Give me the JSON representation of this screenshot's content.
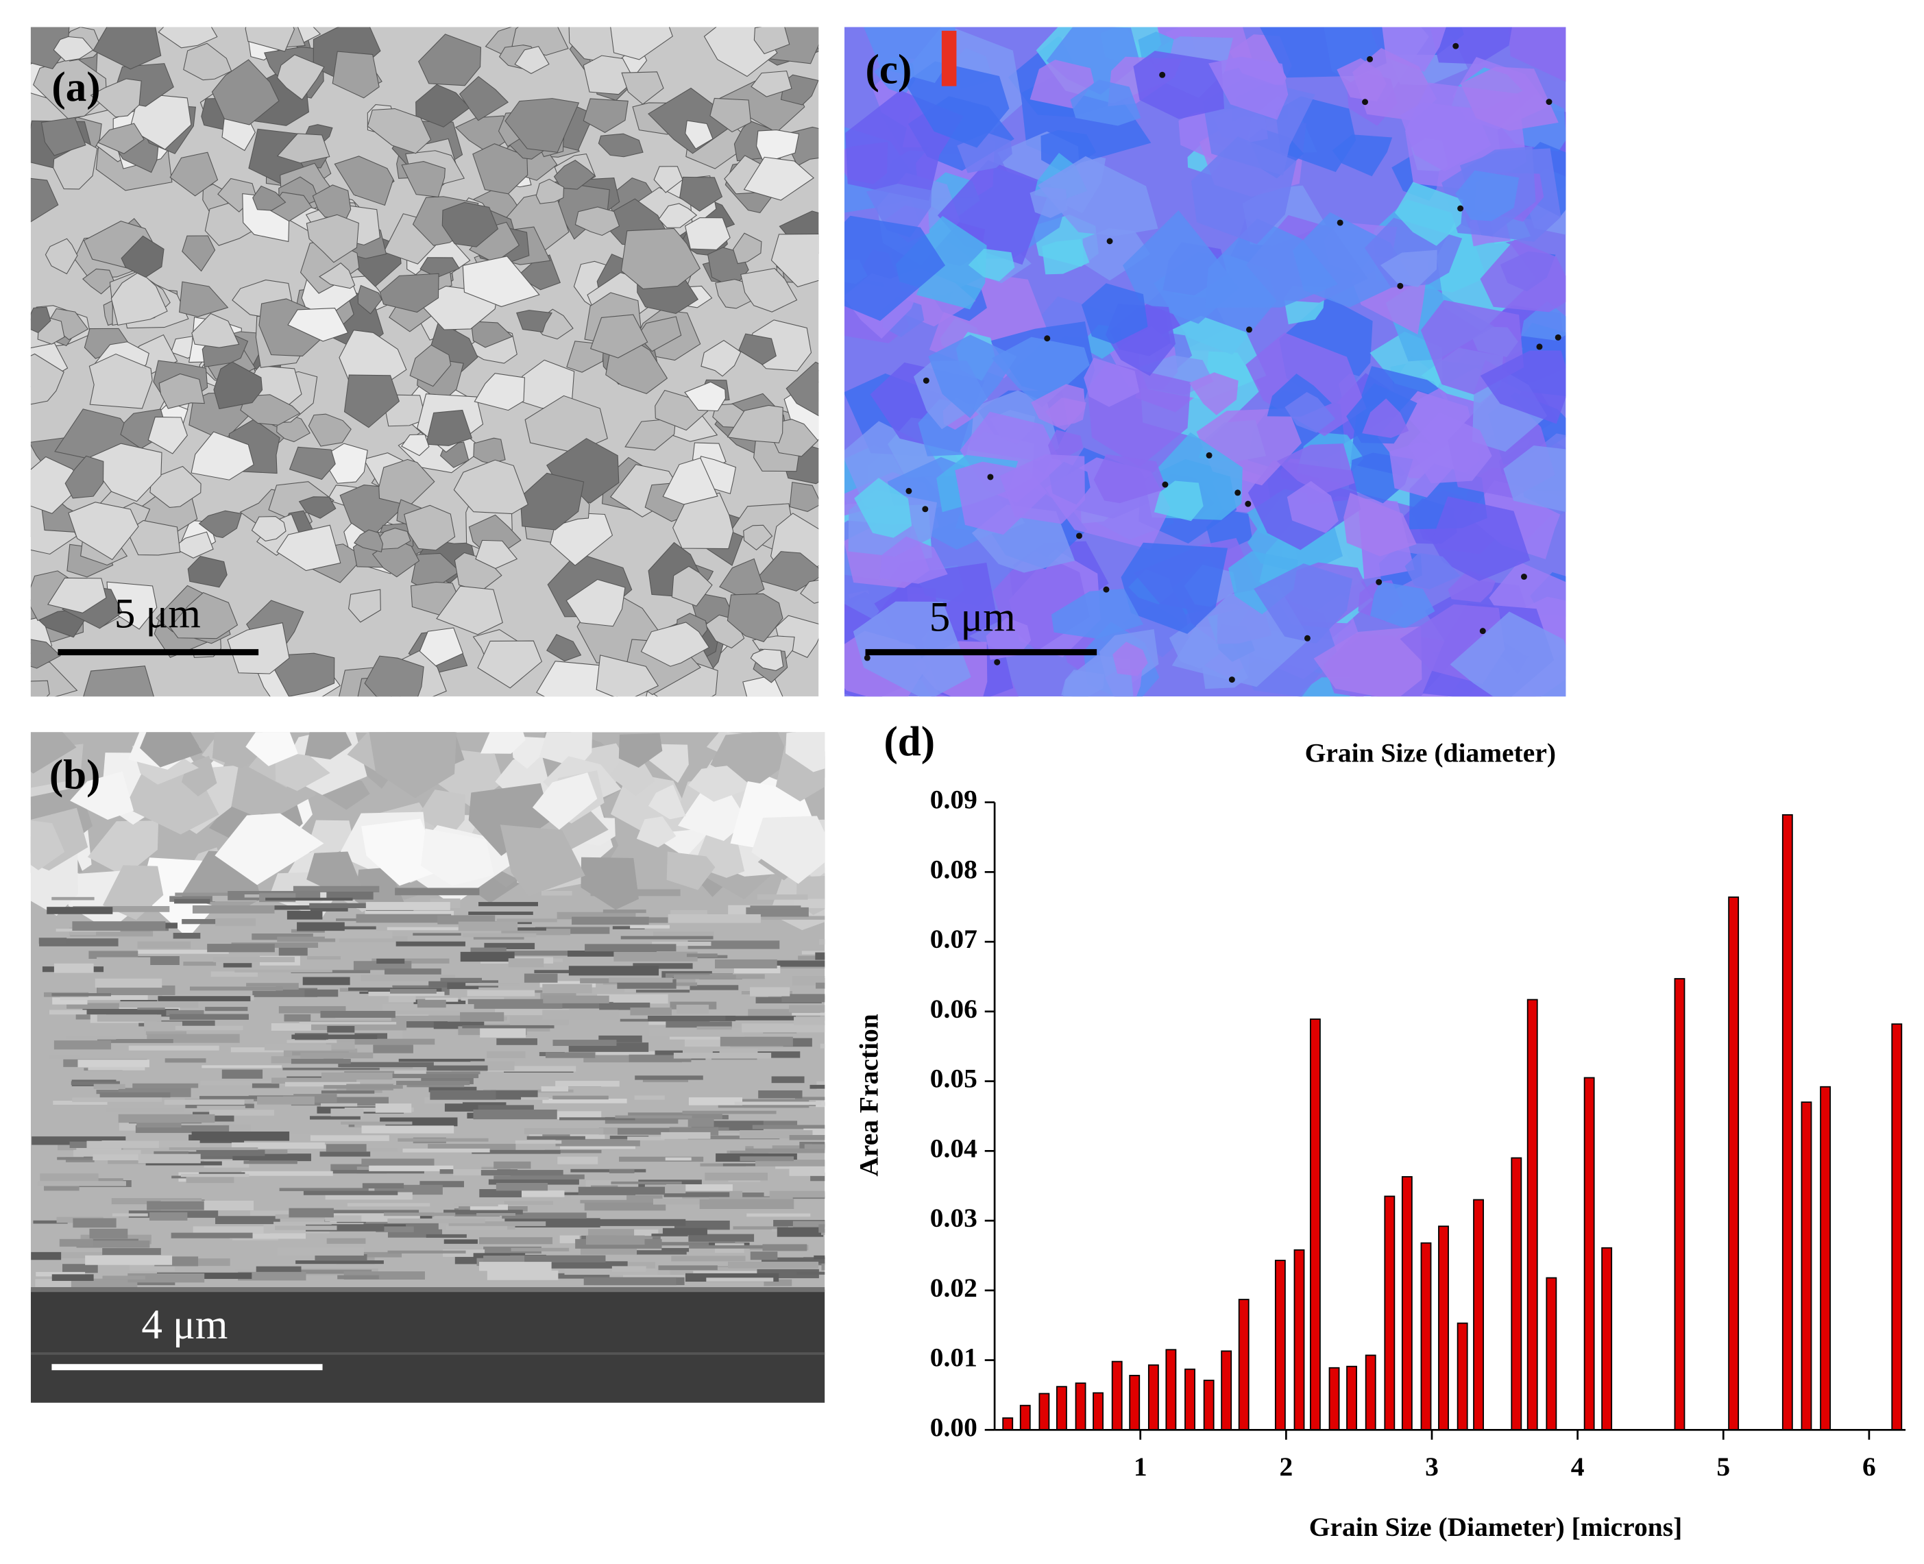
{
  "panels": [
    {
      "label": "(a)",
      "scale_bar": "5 μm"
    },
    {
      "label": "(b)",
      "scale_bar": "4 μm"
    },
    {
      "label": "(c)",
      "scale_bar": "5 μm"
    }
  ],
  "chart_data": {
    "type": "bar",
    "label": "(d)",
    "title": "Grain Size (diameter)",
    "x_label": "Grain Size (Diameter) [microns]",
    "y_label": "Area Fraction",
    "x": [
      0.09,
      0.21,
      0.34,
      0.46,
      0.59,
      0.71,
      0.84,
      0.96,
      1.09,
      1.21,
      1.34,
      1.47,
      1.59,
      1.71,
      1.96,
      2.09,
      2.2,
      2.33,
      2.45,
      2.58,
      2.71,
      2.83,
      2.96,
      3.08,
      3.21,
      3.32,
      3.58,
      3.69,
      3.82,
      4.08,
      4.2,
      4.7,
      5.07,
      5.44,
      5.57,
      5.7,
      6.19
    ],
    "values": [
      0.0017,
      0.0035,
      0.0052,
      0.0062,
      0.0067,
      0.0053,
      0.0098,
      0.0078,
      0.0093,
      0.0115,
      0.0087,
      0.0071,
      0.0113,
      0.0187,
      0.0243,
      0.0258,
      0.0589,
      0.0089,
      0.0091,
      0.0107,
      0.0335,
      0.0363,
      0.0268,
      0.0292,
      0.0153,
      0.033,
      0.039,
      0.0617,
      0.0218,
      0.0505,
      0.0261,
      0.0647,
      0.0764,
      0.0882,
      0.047,
      0.0492,
      0.0582
    ],
    "color": "#e00000",
    "xlim": [
      0,
      6.25
    ],
    "xticks": [
      1,
      2,
      3,
      4,
      5,
      6
    ],
    "ylim": [
      0,
      0.09
    ],
    "yticks": [
      {
        "value": 0,
        "label": "0.00"
      },
      {
        "value": 0.01,
        "label": "0.01"
      },
      {
        "value": 0.02,
        "label": "0.02"
      },
      {
        "value": 0.03,
        "label": "0.03"
      },
      {
        "value": 0.04,
        "label": "0.04"
      },
      {
        "value": 0.05,
        "label": "0.05"
      },
      {
        "value": 0.06,
        "label": "0.06"
      },
      {
        "value": 0.07,
        "label": "0.07"
      },
      {
        "value": 0.08,
        "label": "0.08"
      },
      {
        "value": 0.09,
        "label": "0.09"
      }
    ]
  }
}
